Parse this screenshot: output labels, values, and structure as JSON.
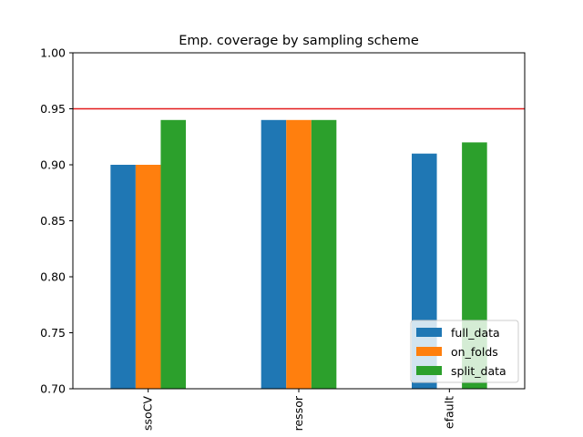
{
  "chart_data": {
    "type": "bar",
    "title": "Emp. coverage by sampling scheme",
    "xlabel": "",
    "ylabel": "",
    "categories": [
      "ssoCV",
      "ressor",
      "efault"
    ],
    "series": [
      {
        "name": "full_data",
        "values": [
          0.9,
          0.94,
          0.91
        ],
        "color": "#1f77b4"
      },
      {
        "name": "on_folds",
        "values": [
          0.9,
          0.94,
          null
        ],
        "color": "#ff7f0e"
      },
      {
        "name": "split_data",
        "values": [
          0.94,
          0.94,
          0.92
        ],
        "color": "#2ca02c"
      }
    ],
    "ylim": [
      0.7,
      1.0
    ],
    "yticks": [
      "0.70",
      "0.75",
      "0.80",
      "0.85",
      "0.90",
      "0.95",
      "1.00"
    ],
    "reference_line": {
      "value": 0.95,
      "color": "#e31a1c"
    },
    "grid": false,
    "legend_position": "lower-right"
  }
}
